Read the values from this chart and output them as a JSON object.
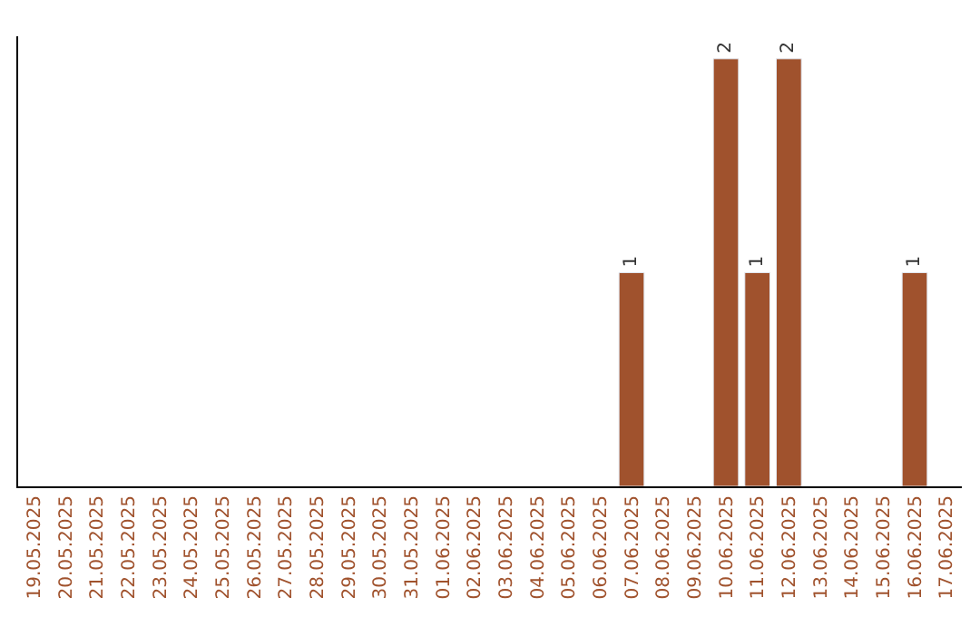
{
  "chart_data": {
    "type": "bar",
    "categories": [
      "19.05.2025",
      "20.05.2025",
      "21.05.2025",
      "22.05.2025",
      "23.05.2025",
      "24.05.2025",
      "25.05.2025",
      "26.05.2025",
      "27.05.2025",
      "28.05.2025",
      "29.05.2025",
      "30.05.2025",
      "31.05.2025",
      "01.06.2025",
      "02.06.2025",
      "03.06.2025",
      "04.06.2025",
      "05.06.2025",
      "06.06.2025",
      "07.06.2025",
      "08.06.2025",
      "09.06.2025",
      "10.06.2025",
      "11.06.2025",
      "12.06.2025",
      "13.06.2025",
      "14.06.2025",
      "15.06.2025",
      "16.06.2025",
      "17.06.2025"
    ],
    "values": [
      null,
      null,
      null,
      null,
      null,
      null,
      null,
      null,
      null,
      null,
      null,
      null,
      null,
      null,
      null,
      null,
      null,
      null,
      null,
      1,
      null,
      null,
      2,
      1,
      2,
      null,
      null,
      null,
      1,
      null
    ],
    "value_labels": [
      null,
      null,
      null,
      null,
      null,
      null,
      null,
      null,
      null,
      null,
      null,
      null,
      null,
      null,
      null,
      null,
      null,
      null,
      null,
      "1",
      null,
      null,
      "2",
      "1",
      "2",
      null,
      null,
      null,
      "1",
      null
    ],
    "color": "#a0522d",
    "tick_labels": "x",
    "legend": false
  }
}
